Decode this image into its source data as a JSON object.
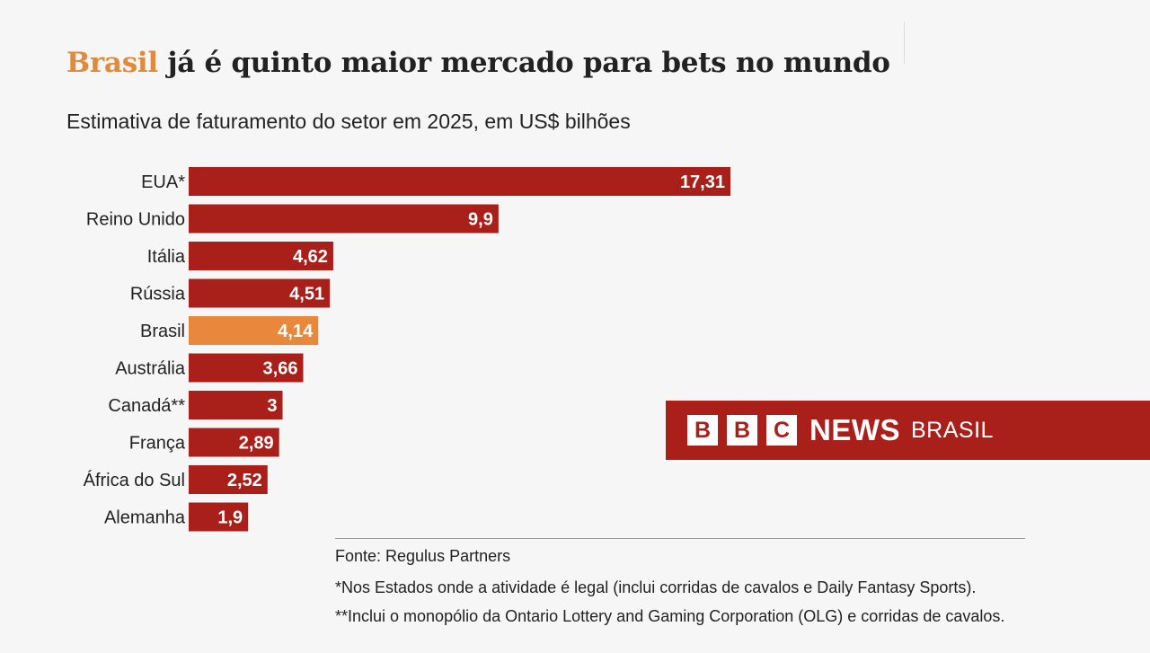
{
  "title": {
    "highlight": "Brasil",
    "rest": " já é quinto maior mercado para bets no mundo"
  },
  "subtitle": "Estimativa de faturamento do setor em 2025, em US$ bilhões",
  "colors": {
    "bar": "#a91f1a",
    "highlight_bar": "#e9873c",
    "title_highlight": "#e08a3c",
    "text": "#222222"
  },
  "chart_data": {
    "type": "bar",
    "orientation": "horizontal",
    "categories": [
      "EUA*",
      "Reino Unido",
      "Itália",
      "Rússia",
      "Brasil",
      "Austrália",
      "Canadá**",
      "França",
      "África do Sul",
      "Alemanha"
    ],
    "values": [
      17.31,
      9.9,
      4.62,
      4.51,
      4.14,
      3.66,
      3,
      2.89,
      2.52,
      1.9
    ],
    "value_labels": [
      "17,31",
      "9,9",
      "4,62",
      "4,51",
      "4,14",
      "3,66",
      "3",
      "2,89",
      "2,52",
      "1,9"
    ],
    "highlight": "Brasil",
    "title": "Brasil já é quinto maior mercado para bets no mundo",
    "subtitle": "Estimativa de faturamento do setor em 2025, em US$ bilhões",
    "xlabel": "",
    "ylabel": "",
    "xlim": [
      0,
      17.31
    ],
    "grid": false
  },
  "footer": {
    "source": "Fonte: Regulus Partners",
    "note1": "*Nos Estados onde a atividade é legal (inclui corridas de cavalos e Daily Fantasy Sports).",
    "note2": "**Inclui o monopólio da Ontario Lottery and Gaming Corporation (OLG) e  corridas de cavalos."
  },
  "logo": {
    "letters": [
      "B",
      "B",
      "C"
    ],
    "news": "NEWS",
    "brasil": "BRASIL"
  }
}
